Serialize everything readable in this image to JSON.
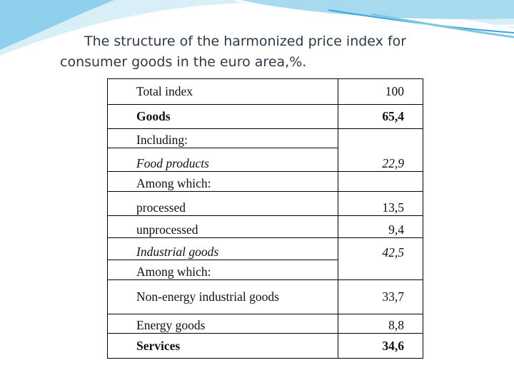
{
  "slide": {
    "title": "The structure of the harmonized price index for consumer goods in the euro area,%."
  },
  "table": {
    "rows": [
      {
        "label": "Total index",
        "value": "100"
      },
      {
        "label": "Goods",
        "value": "65,4"
      },
      {
        "label": "Including:",
        "value": ""
      },
      {
        "label": "Food products",
        "value": "22,9"
      },
      {
        "label": "Among which:",
        "value": ""
      },
      {
        "label": "processed",
        "value": "13,5"
      },
      {
        "label": "unprocessed",
        "value": "9,4"
      },
      {
        "label": "Industrial goods",
        "value": "42,5"
      },
      {
        "label": "Among which:",
        "value": ""
      },
      {
        "label": "Non-energy industrial goods",
        "value": "33,7"
      },
      {
        "label": "Energy goods",
        "value": "8,8"
      },
      {
        "label": "Services",
        "value": "34,6"
      }
    ]
  },
  "colors": {
    "wave_light": "#cfeaf5",
    "wave_mid": "#7fc6e6",
    "wave_dark": "#2f9fd6",
    "title_text": "#2b3a4a"
  }
}
